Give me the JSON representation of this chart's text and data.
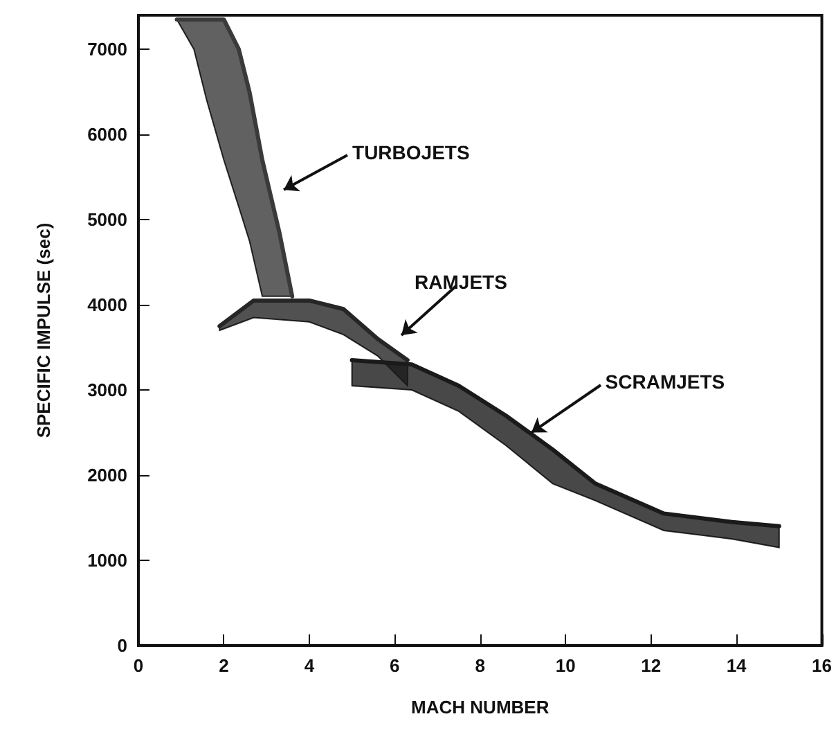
{
  "chart_data": {
    "type": "line",
    "xlabel": "MACH NUMBER",
    "ylabel": "SPECIFIC IMPULSE (sec)",
    "xlim": [
      0,
      16
    ],
    "xticks": [
      0,
      2,
      4,
      6,
      8,
      10,
      12,
      14,
      16
    ],
    "ylim": [
      0,
      7400
    ],
    "yticks": [
      0,
      1000,
      2000,
      3000,
      4000,
      5000,
      6000,
      7000
    ],
    "grid": false,
    "marker": "none",
    "line_style": "solid",
    "series": [
      {
        "color": "#3a3a3a",
        "x": [
          0.9,
          1.3,
          1.6,
          2.0,
          2.35,
          2.6,
          2.9,
          3.3,
          3.6
        ],
        "lower": [
          7350,
          7000,
          6400,
          5700,
          5150,
          4750,
          4100,
          4100,
          4100
        ],
        "upper": [
          7350,
          7350,
          7350,
          7350,
          7000,
          6500,
          5700,
          4850,
          4100
        ],
        "values": [
          7350,
          7350,
          7350,
          7350,
          7000,
          6500,
          5700,
          4850,
          4100
        ]
      },
      {
        "color": "#262626",
        "x": [
          1.9,
          2.7,
          4.0,
          4.8,
          5.6,
          6.3
        ],
        "lower": [
          3700,
          3850,
          3800,
          3650,
          3400,
          3050
        ],
        "upper": [
          3750,
          4050,
          4050,
          3950,
          3600,
          3350
        ],
        "values": [
          3750,
          4050,
          4050,
          3950,
          3600,
          3350
        ]
      },
      {
        "color": "#1a1a1a",
        "x": [
          5,
          6.4,
          7.5,
          8.6,
          9.7,
          10.7,
          12.3,
          13.9,
          15
        ],
        "lower": [
          3050,
          3000,
          2750,
          2350,
          1900,
          1700,
          1350,
          1250,
          1150
        ],
        "upper": [
          3350,
          3300,
          3050,
          2700,
          2300,
          1900,
          1550,
          1450,
          1400
        ],
        "values": [
          3350,
          3300,
          3050,
          2700,
          2300,
          1900,
          1550,
          1450,
          1400
        ]
      }
    ],
    "annotations": [
      "TURBOJETS",
      "RAMJETS",
      {
        "text": "SCRAMJETS",
        "x": 9.2,
        "y": 2500
      }
    ]
  }
}
